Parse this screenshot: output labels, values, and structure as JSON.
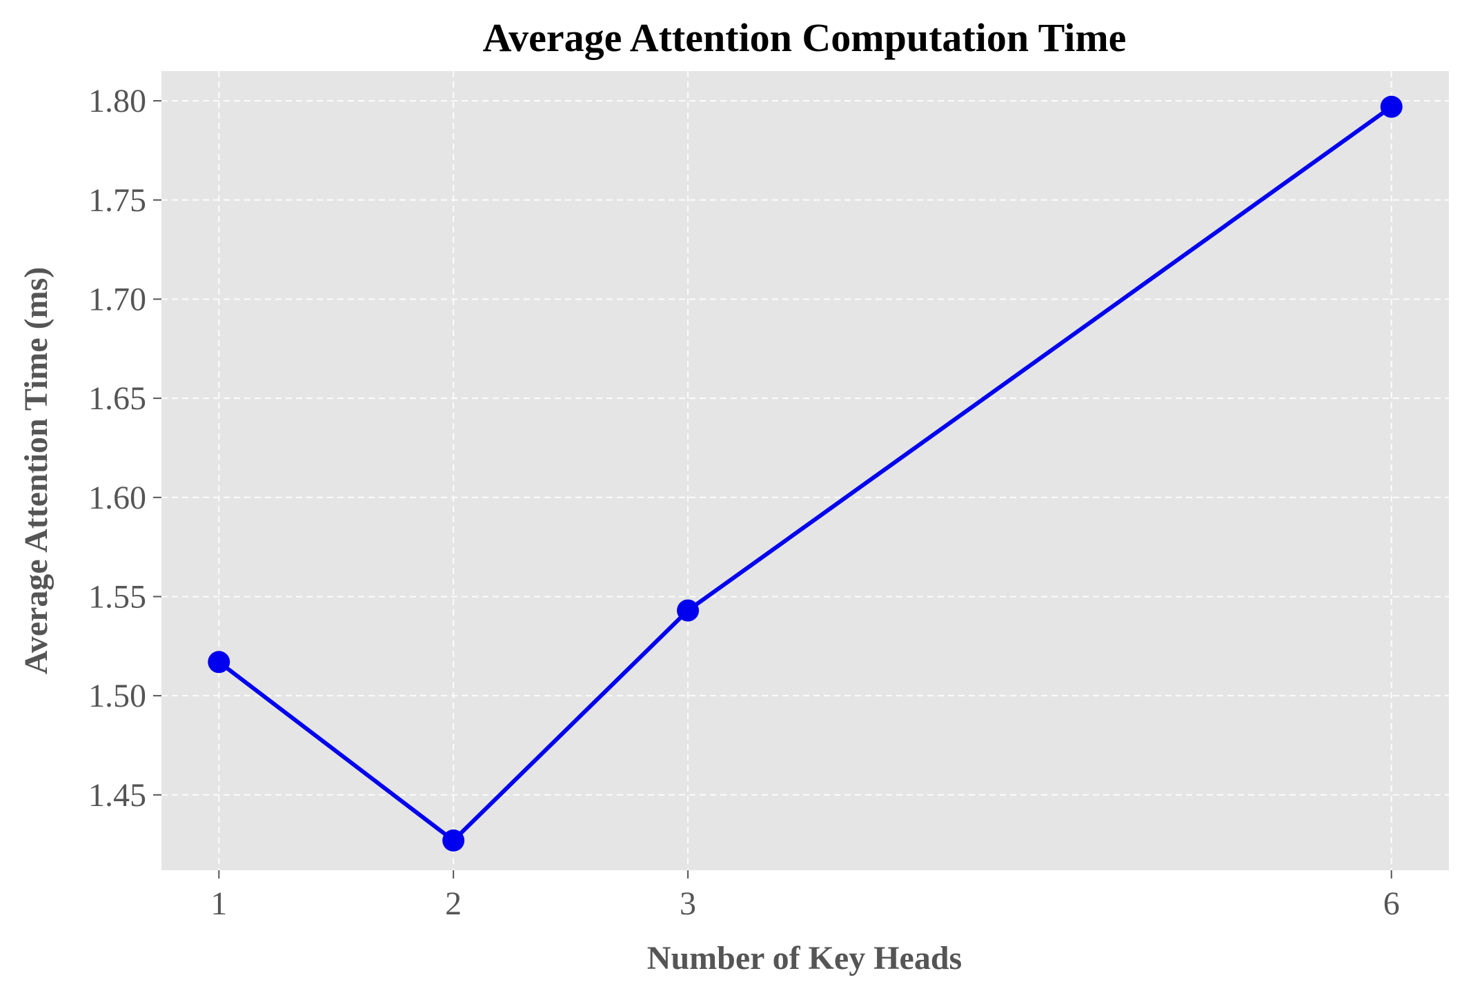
{
  "chart_data": {
    "type": "line",
    "title": "Average Attention Computation Time",
    "xlabel": "Number of Key Heads",
    "ylabel": "Average Attention Time (ms)",
    "x": [
      1,
      2,
      3,
      6
    ],
    "xticks": [
      "1",
      "2",
      "3",
      "6"
    ],
    "xlim": [
      0.755,
      6.245
    ],
    "series": [
      {
        "values": [
          1.517,
          1.427,
          1.543,
          1.797
        ]
      }
    ],
    "yticks": [
      "1.45",
      "1.50",
      "1.55",
      "1.60",
      "1.65",
      "1.70",
      "1.75",
      "1.80"
    ],
    "ylim": [
      1.412,
      1.815
    ],
    "grid": true,
    "colors": {
      "line": "#0000ee",
      "plot_background": "#e5e5e5",
      "grid": "#ffffff"
    }
  }
}
